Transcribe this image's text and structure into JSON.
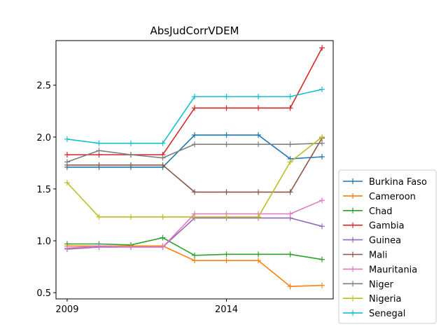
{
  "chart_data": {
    "type": "line",
    "title": "AbsJudCorrVDEM",
    "xlabel": "",
    "ylabel": "",
    "x": [
      2009,
      2010,
      2011,
      2012,
      2013,
      2014,
      2015,
      2016,
      2017
    ],
    "xlim": [
      2008.65,
      2017.35
    ],
    "ylim": [
      0.44,
      2.93
    ],
    "xticks": [
      2009,
      2014
    ],
    "yticks": [
      0.5,
      1.0,
      1.5,
      2.0,
      2.5
    ],
    "ytick_labels": [
      "0.5",
      "1.0",
      "1.5",
      "2.0",
      "2.5"
    ],
    "grid": false,
    "legend_position": "outside-right-bottom",
    "series": [
      {
        "name": "Burkina Faso",
        "color": "#1f77b4",
        "values": [
          1.71,
          1.71,
          1.71,
          1.71,
          2.02,
          2.02,
          2.02,
          1.79,
          1.81
        ]
      },
      {
        "name": "Cameroon",
        "color": "#ff7f0e",
        "values": [
          0.95,
          0.95,
          0.95,
          0.95,
          0.81,
          0.81,
          0.81,
          0.56,
          0.57
        ]
      },
      {
        "name": "Chad",
        "color": "#2ca02c",
        "values": [
          0.97,
          0.97,
          0.96,
          1.03,
          0.86,
          0.87,
          0.87,
          0.87,
          0.82
        ]
      },
      {
        "name": "Gambia",
        "color": "#d62728",
        "values": [
          1.83,
          1.83,
          1.83,
          1.83,
          2.28,
          2.28,
          2.28,
          2.28,
          2.86
        ]
      },
      {
        "name": "Guinea",
        "color": "#9467bd",
        "values": [
          0.92,
          0.94,
          0.94,
          0.94,
          1.22,
          1.22,
          1.22,
          1.22,
          1.14
        ]
      },
      {
        "name": "Mali",
        "color": "#8c564b",
        "values": [
          1.73,
          1.73,
          1.73,
          1.73,
          1.47,
          1.47,
          1.47,
          1.47,
          1.99
        ]
      },
      {
        "name": "Mauritania",
        "color": "#e377c2",
        "values": [
          0.93,
          0.95,
          0.94,
          0.94,
          1.26,
          1.26,
          1.26,
          1.26,
          1.39
        ]
      },
      {
        "name": "Niger",
        "color": "#7f7f7f",
        "values": [
          1.76,
          1.87,
          1.83,
          1.8,
          1.93,
          1.93,
          1.93,
          1.93,
          1.94
        ]
      },
      {
        "name": "Nigeria",
        "color": "#bcbd22",
        "values": [
          1.56,
          1.23,
          1.23,
          1.23,
          1.23,
          1.23,
          1.23,
          1.76,
          2.0
        ]
      },
      {
        "name": "Senegal",
        "color": "#17becf",
        "values": [
          1.98,
          1.94,
          1.94,
          1.94,
          2.39,
          2.39,
          2.39,
          2.39,
          2.46
        ]
      }
    ]
  }
}
